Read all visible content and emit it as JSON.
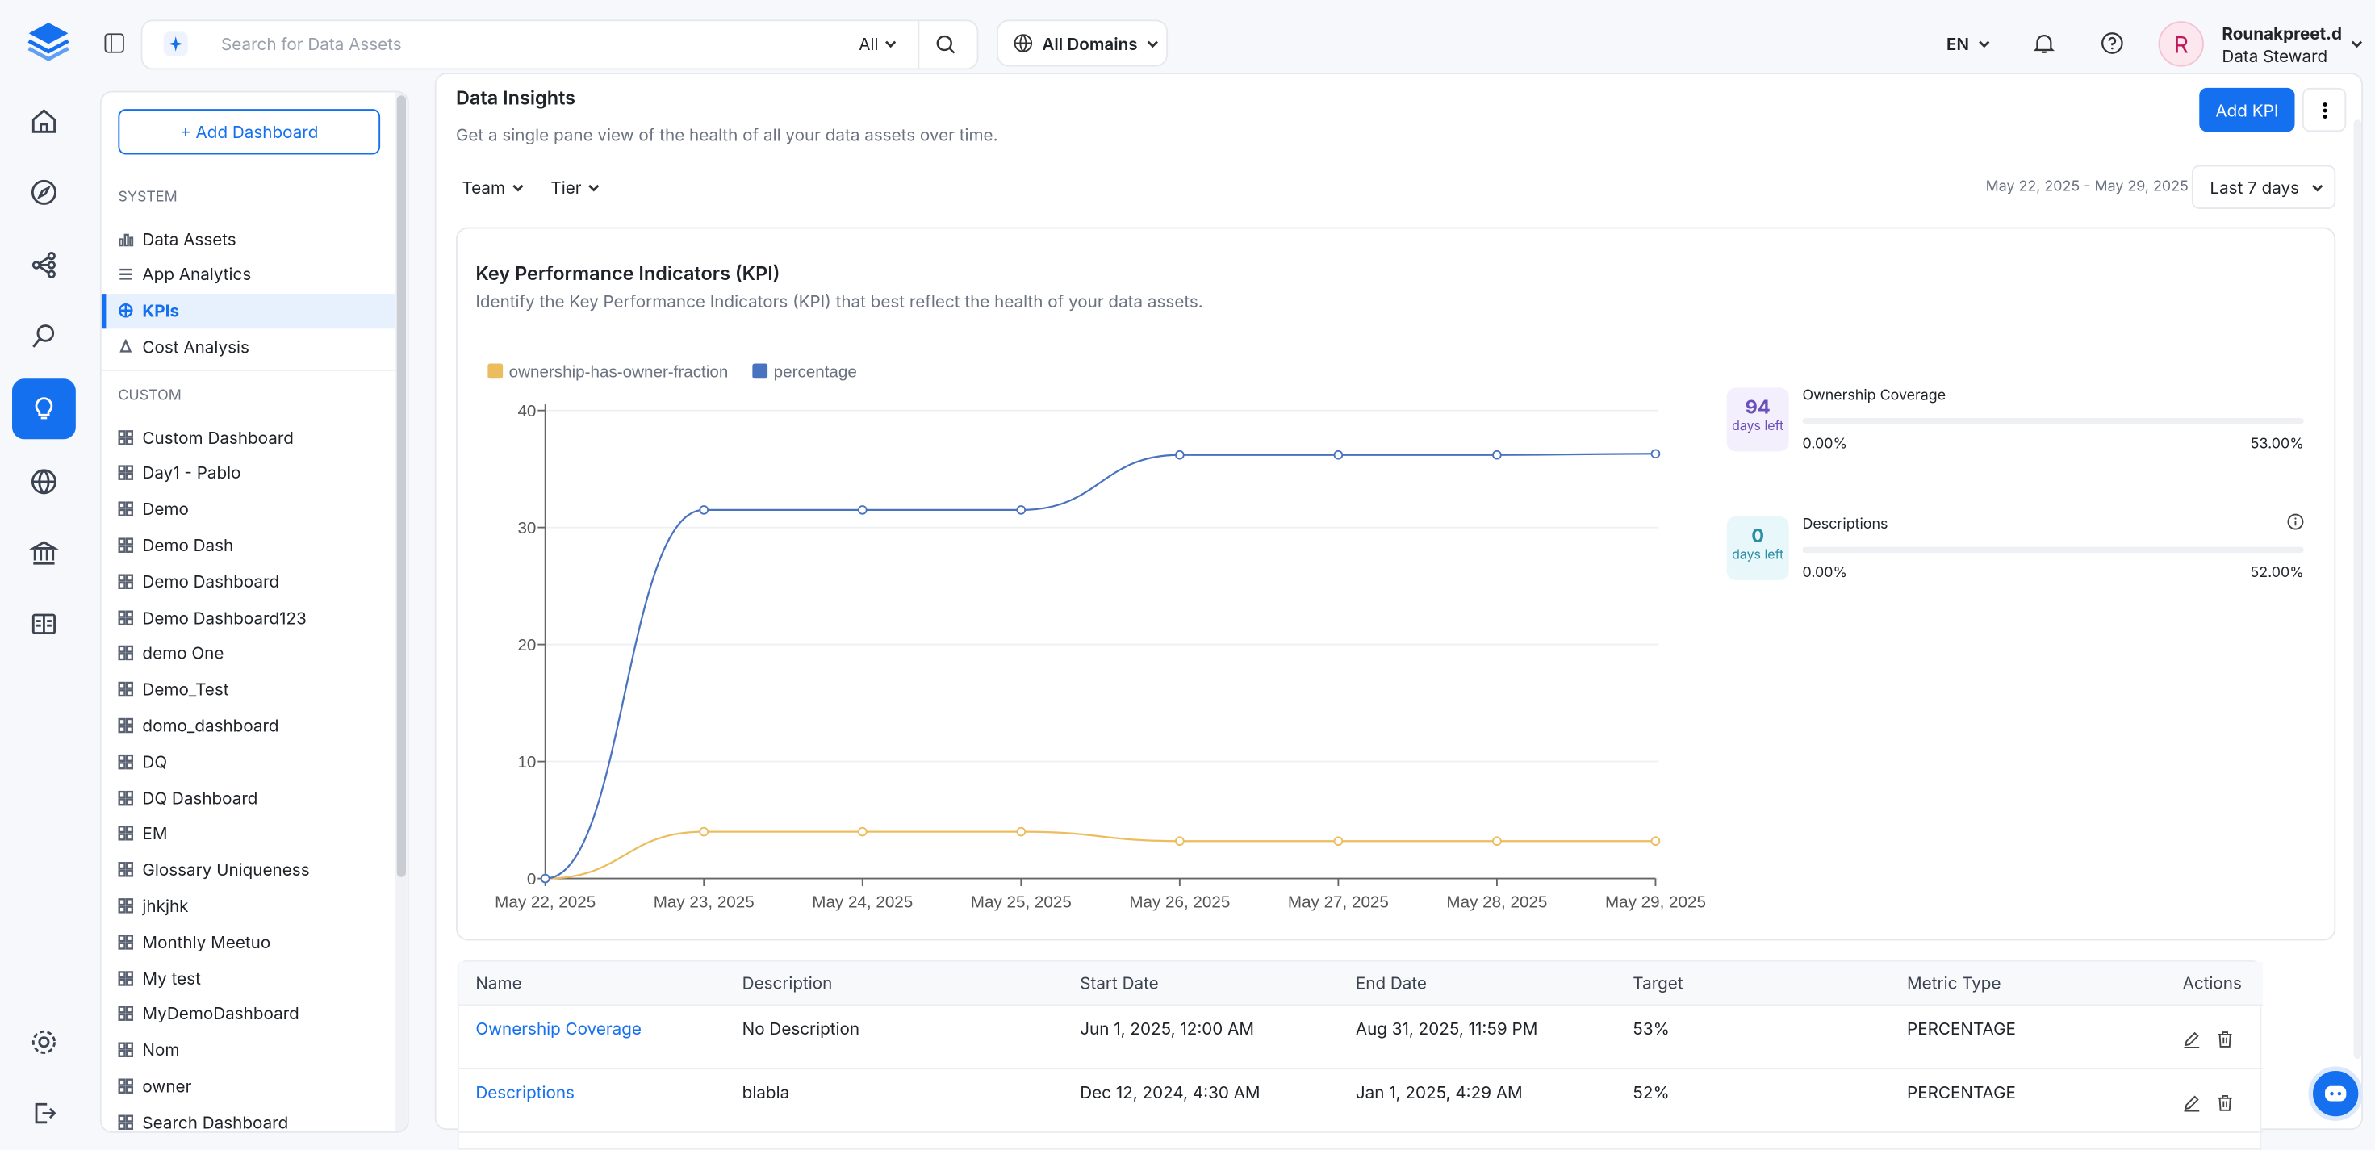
{
  "header": {
    "search_placeholder": "Search for Data Assets",
    "search_filter": "All",
    "domains": "All Domains",
    "language": "EN",
    "avatar": "R",
    "user_name": "Rounakpreet.d",
    "user_role": "Data Steward"
  },
  "sidebar": {
    "add_button": "+ Add Dashboard",
    "system_heading": "SYSTEM",
    "system_items": [
      "Data Assets",
      "App Analytics",
      "KPIs",
      "Cost Analysis"
    ],
    "custom_heading": "CUSTOM",
    "custom_items": [
      "Custom Dashboard",
      "Day1 - Pablo",
      "Demo",
      "Demo Dash",
      "Demo Dashboard",
      "Demo Dashboard123",
      "demo One",
      "Demo_Test",
      "domo_dashboard",
      "DQ",
      "DQ Dashboard",
      "EM",
      "Glossary Uniqueness",
      "jhkjhk",
      "Monthly Meetuo",
      "My test",
      "MyDemoDashboard",
      "Nom",
      "owner",
      "Search Dashboard"
    ]
  },
  "page": {
    "title": "Data Insights",
    "subtitle": "Get a single pane view of the health of all your data assets over time.",
    "add_kpi": "Add KPI",
    "filters": [
      "Team",
      "Tier"
    ],
    "date_range": "May 22, 2025 - May 29, 2025",
    "range_select": "Last 7 days"
  },
  "chart_data": {
    "type": "line",
    "title": "Key Performance Indicators (KPI)",
    "subtitle": "Identify the Key Performance Indicators (KPI) that best reflect the health of your data assets.",
    "categories": [
      "May 22, 2025",
      "May 23, 2025",
      "May 24, 2025",
      "May 25, 2025",
      "May 26, 2025",
      "May 27, 2025",
      "May 28, 2025",
      "May 29, 2025"
    ],
    "series": [
      {
        "name": "ownership-has-owner-fraction",
        "color": "#ecbd5e",
        "values": [
          0,
          4,
          4,
          4,
          3.2,
          3.2,
          3.2,
          3.2
        ]
      },
      {
        "name": "percentage",
        "color": "#4a73bf",
        "values": [
          0,
          31.5,
          31.5,
          31.5,
          36.2,
          36.2,
          36.2,
          36.3
        ]
      }
    ],
    "ylim": [
      0,
      40
    ],
    "yticks": [
      0,
      10,
      20,
      30,
      40
    ],
    "grid": true
  },
  "kpi_cards": [
    {
      "days": 94,
      "days_label": "days left",
      "name": "Ownership Coverage",
      "start": "0.00%",
      "end": "53.00%"
    },
    {
      "days": 0,
      "days_label": "days left",
      "name": "Descriptions",
      "start": "0.00%",
      "end": "52.00%"
    }
  ],
  "table": {
    "headers": [
      "Name",
      "Description",
      "Start Date",
      "End Date",
      "Target",
      "Metric Type",
      "Actions"
    ],
    "rows": [
      [
        "Ownership Coverage",
        "No Description",
        "Jun 1, 2025, 12:00 AM",
        "Aug 31, 2025, 11:59 PM",
        "53%",
        "PERCENTAGE"
      ],
      [
        "Descriptions",
        "blabla",
        "Dec 12, 2024, 4:30 AM",
        "Jan 1, 2025, 4:29 AM",
        "52%",
        "PERCENTAGE"
      ]
    ]
  }
}
